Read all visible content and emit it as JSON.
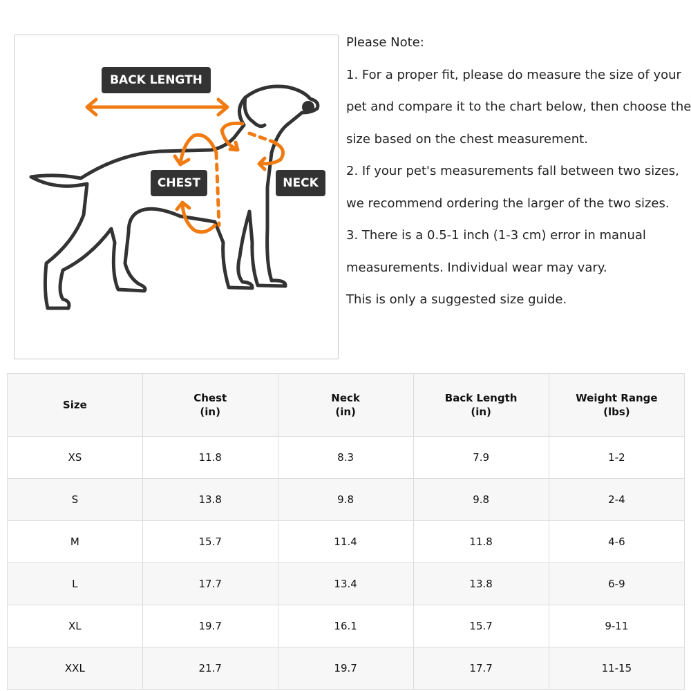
{
  "figure": {
    "labels": {
      "back_length": "BACK LENGTH",
      "chest": "CHEST",
      "neck": "NECK"
    },
    "colors": {
      "outline": "#333333",
      "arrow": "#f07b12",
      "label_bg": "#333333"
    }
  },
  "notes": [
    "Please Note:",
    "1. For a proper fit, please do measure the size of your",
    "pet and compare it to the chart below, then choose the",
    "size based on the chest measurement.",
    "2. If your pet's measurements fall between two sizes,",
    "we recommend ordering the larger of the two sizes.",
    "3. There is a 0.5-1 inch (1-3 cm) error in manual",
    "measurements. Individual wear may vary.",
    "This is only a suggested size guide."
  ],
  "table": {
    "headers": [
      {
        "line1": "Size",
        "line2": ""
      },
      {
        "line1": "Chest",
        "line2": "(in)"
      },
      {
        "line1": "Neck",
        "line2": "(in)"
      },
      {
        "line1": "Back Length",
        "line2": "(in)"
      },
      {
        "line1": "Weight Range",
        "line2": "(lbs)"
      }
    ],
    "rows": [
      [
        "XS",
        "11.8",
        "8.3",
        "7.9",
        "1-2"
      ],
      [
        "S",
        "13.8",
        "9.8",
        "9.8",
        "2-4"
      ],
      [
        "M",
        "15.7",
        "11.4",
        "11.8",
        "4-6"
      ],
      [
        "L",
        "17.7",
        "13.4",
        "13.8",
        "6-9"
      ],
      [
        "XL",
        "19.7",
        "16.1",
        "15.7",
        "9-11"
      ],
      [
        "XXL",
        "21.7",
        "19.7",
        "17.7",
        "11-15"
      ]
    ]
  }
}
